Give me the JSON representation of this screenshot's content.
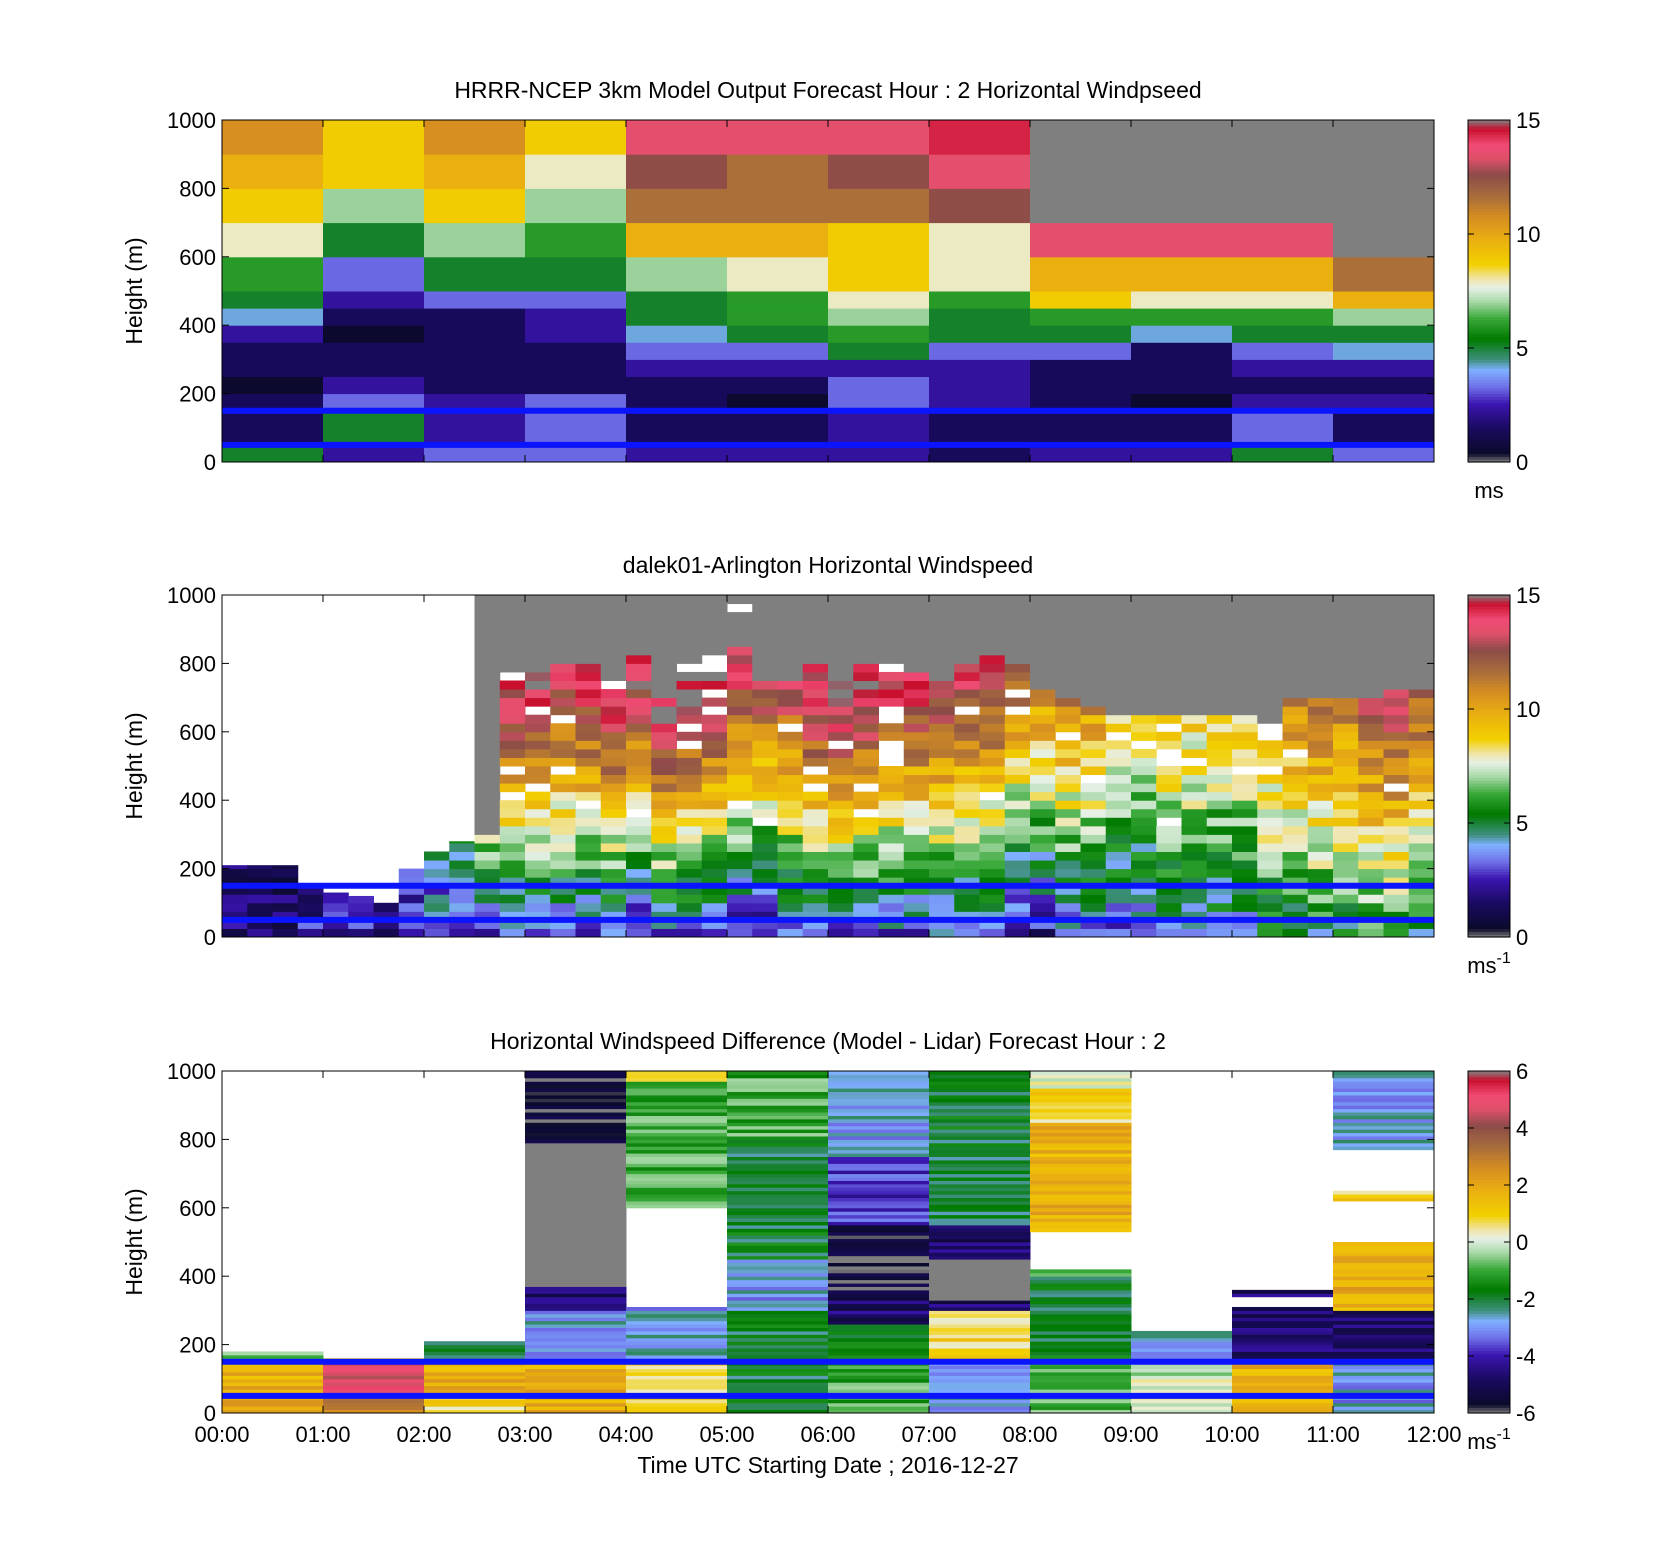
{
  "figure": {
    "xlabel": "Time UTC  Starting Date ; 2016-12-27",
    "x_ticks": [
      "00:00",
      "01:00",
      "02:00",
      "03:00",
      "04:00",
      "05:00",
      "06:00",
      "07:00",
      "08:00",
      "09:00",
      "10:00",
      "11:00",
      "12:00"
    ],
    "y_ticks": [
      "0",
      "200",
      "400",
      "600",
      "800",
      "1000"
    ],
    "ylabel": "Height (m)",
    "reference_lines": {
      "heights_m": [
        50,
        150
      ],
      "color": "#0a14ff"
    },
    "nodata_color": "#7f7f7f"
  },
  "chart_data": [
    {
      "type": "heatmap",
      "title": "HRRR-NCEP 3km Model Output   Forecast Hour : 2 Horizontal Windpseed",
      "xlabel": "",
      "ylabel": "Height (m)",
      "xlim": [
        0,
        12
      ],
      "ylim": [
        0,
        1000
      ],
      "clim": [
        0,
        15
      ],
      "colorbar": {
        "ticks": [
          "0",
          "5",
          "10",
          "15"
        ],
        "unit_base": "ms",
        "unit_exp": ""
      },
      "x_hours": [
        0,
        1,
        2,
        3,
        4,
        5,
        6,
        7,
        8,
        9,
        10,
        11
      ],
      "bin_edges_m": [
        0,
        50,
        150,
        200,
        250,
        300,
        350,
        400,
        450,
        500,
        600,
        700,
        800,
        900,
        1000
      ],
      "values": [
        [
          5,
          2,
          3,
          3,
          2,
          2,
          2,
          1,
          2,
          2,
          5,
          3
        ],
        [
          1,
          5,
          2,
          3,
          1,
          1,
          2,
          1,
          1,
          1,
          3,
          1
        ],
        [
          1,
          3,
          2,
          3,
          1,
          0,
          3,
          2,
          1,
          0,
          2,
          2
        ],
        [
          0,
          2,
          1,
          1,
          1,
          1,
          3,
          2,
          1,
          1,
          1,
          1
        ],
        [
          1,
          1,
          1,
          1,
          2,
          2,
          2,
          2,
          1,
          1,
          2,
          2
        ],
        [
          1,
          1,
          1,
          1,
          3,
          3,
          5,
          3,
          3,
          1,
          3,
          4
        ],
        [
          2,
          0,
          1,
          2,
          4,
          5,
          6,
          5,
          5,
          4,
          5,
          5
        ],
        [
          4,
          1,
          1,
          2,
          5,
          6,
          7,
          5,
          6,
          6,
          6,
          7
        ],
        [
          5,
          2,
          3,
          3,
          5,
          6,
          8,
          6,
          9,
          8,
          8,
          10
        ],
        [
          6,
          3,
          5,
          5,
          7,
          8,
          9,
          8,
          10,
          10,
          10,
          12
        ],
        [
          8,
          5,
          7,
          6,
          10,
          10,
          9,
          8,
          14,
          14,
          14,
          null
        ],
        [
          9,
          7,
          9,
          7,
          12,
          12,
          12,
          13,
          null,
          null,
          null,
          null
        ],
        [
          10,
          9,
          10,
          8,
          13,
          12,
          13,
          14,
          null,
          null,
          null,
          null
        ],
        [
          11,
          9,
          11,
          9,
          14,
          14,
          14,
          15,
          null,
          null,
          null,
          null
        ]
      ]
    },
    {
      "type": "heatmap",
      "title": "dalek01-Arlington  Horizontal Windspeed",
      "xlabel": "",
      "ylabel": "Height (m)",
      "xlim": [
        0,
        12
      ],
      "ylim": [
        0,
        1000
      ],
      "clim": [
        0,
        15
      ],
      "colorbar": {
        "ticks": [
          "0",
          "5",
          "10",
          "15"
        ],
        "unit_base": "ms",
        "unit_exp": "-1"
      },
      "x_step_hours": 0.25,
      "y_step_m": 50,
      "top_m": [
        210,
        210,
        210,
        150,
        130,
        120,
        100,
        200,
        250,
        280,
        1000,
        1000,
        1000,
        1000,
        1000,
        1000,
        1000,
        1000,
        1000,
        1000,
        1000,
        1000,
        1000,
        1000,
        1000,
        1000,
        1000,
        1000,
        1000,
        1000,
        1000,
        1000,
        1000,
        1000,
        1000,
        1000,
        1000,
        1000,
        1000,
        1000,
        1000,
        1000,
        1000,
        1000,
        1000,
        1000,
        1000,
        1000
      ],
      "fill_top_m": [
        210,
        210,
        210,
        150,
        130,
        120,
        100,
        200,
        250,
        280,
        280,
        770,
        820,
        800,
        810,
        830,
        1000,
        1000,
        870,
        860,
        1000,
        740,
        730,
        850,
        1000,
        820,
        780,
        760,
        750,
        820,
        820,
        780,
        720,
        700,
        660,
        650,
        650,
        640,
        630,
        640,
        640,
        620,
        690,
        690,
        690,
        690,
        720,
        710
      ],
      "base_speed": [
        1,
        1,
        1,
        2,
        2,
        2,
        1,
        2,
        3,
        3,
        3,
        3,
        3,
        3,
        3,
        3,
        2,
        3,
        3,
        3,
        2,
        2,
        3,
        3,
        3,
        3,
        3,
        3,
        3,
        3,
        3,
        2,
        2,
        3,
        3,
        3,
        3,
        4,
        4,
        4,
        4,
        5,
        5,
        5,
        5,
        6,
        6,
        5
      ],
      "speed_gradient_per_100m": [
        0.1,
        0.1,
        0.1,
        0.1,
        0.1,
        0.1,
        0.1,
        0.2,
        0.4,
        0.6,
        1.4,
        1.6,
        1.7,
        1.5,
        1.6,
        1.8,
        1.7,
        1.9,
        1.8,
        1.7,
        1.6,
        1.6,
        1.5,
        1.7,
        1.8,
        1.7,
        1.6,
        1.6,
        1.6,
        1.5,
        1.5,
        1.4,
        1.3,
        1.3,
        1.2,
        1.0,
        0.9,
        0.9,
        0.8,
        0.8,
        0.8,
        0.8,
        0.9,
        1.0,
        1.0,
        1.0,
        1.1,
        1.1
      ]
    },
    {
      "type": "heatmap",
      "title": "Horizontal Windspeed Difference (Model - Lidar) Forecast Hour : 2",
      "xlabel": "Time UTC  Starting Date ; 2016-12-27",
      "ylabel": "Height (m)",
      "xlim": [
        0,
        12
      ],
      "ylim": [
        0,
        1000
      ],
      "clim": [
        -6,
        6
      ],
      "colorbar": {
        "ticks": [
          "-6",
          "-4",
          "-2",
          "0",
          "2",
          "4",
          "6"
        ],
        "unit_base": "ms",
        "unit_exp": "-1"
      },
      "columns": [
        {
          "hour": 0,
          "segments": [
            [
              0,
              50,
              2
            ],
            [
              50,
              150,
              2
            ],
            [
              150,
              180,
              -1
            ]
          ]
        },
        {
          "hour": 1,
          "segments": [
            [
              0,
              50,
              3
            ],
            [
              50,
              150,
              5
            ],
            [
              150,
              160,
              1
            ]
          ]
        },
        {
          "hour": 2,
          "segments": [
            [
              0,
              50,
              1
            ],
            [
              50,
              150,
              2
            ],
            [
              150,
              210,
              -2
            ]
          ]
        },
        {
          "hour": 3,
          "segments": [
            [
              0,
              150,
              2
            ],
            [
              150,
              300,
              -3
            ],
            [
              300,
              370,
              -5
            ],
            [
              370,
              790,
              null
            ],
            [
              790,
              1000,
              -6
            ]
          ]
        },
        {
          "hour": 4,
          "segments": [
            [
              0,
              150,
              1
            ],
            [
              150,
              310,
              -3
            ],
            [
              600,
              800,
              -1
            ],
            [
              800,
              970,
              -1
            ],
            [
              970,
              1000,
              1
            ]
          ]
        },
        {
          "hour": 5,
          "segments": [
            [
              0,
              150,
              -2
            ],
            [
              150,
              300,
              -2
            ],
            [
              300,
              450,
              -3
            ],
            [
              450,
              650,
              -2
            ],
            [
              650,
              800,
              -2
            ],
            [
              800,
              1000,
              -1
            ]
          ]
        },
        {
          "hour": 6,
          "segments": [
            [
              0,
              150,
              -1
            ],
            [
              150,
              260,
              -2
            ],
            [
              260,
              330,
              -5
            ],
            [
              330,
              550,
              -6
            ],
            [
              550,
              750,
              -4
            ],
            [
              750,
              1000,
              -3
            ]
          ]
        },
        {
          "hour": 7,
          "segments": [
            [
              0,
              150,
              -3
            ],
            [
              150,
              300,
              1
            ],
            [
              300,
              330,
              -5
            ],
            [
              330,
              450,
              null
            ],
            [
              450,
              550,
              -5
            ],
            [
              550,
              1000,
              -2
            ]
          ]
        },
        {
          "hour": 8,
          "segments": [
            [
              0,
              150,
              -1
            ],
            [
              150,
              400,
              -2
            ],
            [
              400,
              420,
              -1
            ],
            [
              530,
              850,
              2
            ],
            [
              850,
              950,
              1
            ],
            [
              950,
              1000,
              0
            ]
          ]
        },
        {
          "hour": 9,
          "segments": [
            [
              0,
              150,
              0
            ],
            [
              150,
              240,
              -3
            ]
          ]
        },
        {
          "hour": 10,
          "segments": [
            [
              0,
              150,
              2
            ],
            [
              150,
              310,
              -5
            ],
            [
              340,
              360,
              -5
            ]
          ]
        },
        {
          "hour": 11,
          "segments": [
            [
              0,
              150,
              -3
            ],
            [
              150,
              300,
              -5
            ],
            [
              300,
              500,
              2
            ],
            [
              620,
              650,
              1
            ],
            [
              770,
              1000,
              -3
            ]
          ]
        }
      ]
    }
  ]
}
